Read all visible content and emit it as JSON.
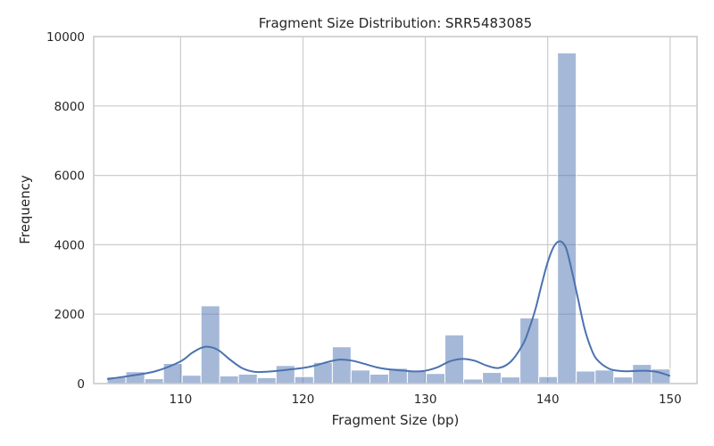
{
  "chart_data": {
    "type": "bar",
    "title": "Fragment Size Distribution: SRR5483085",
    "xlabel": "Fragment Size (bp)",
    "ylabel": "Frequency",
    "xlim": [
      102.9,
      152.2
    ],
    "ylim": [
      0,
      10000
    ],
    "xticks": [
      110,
      120,
      130,
      140,
      150
    ],
    "yticks": [
      0,
      2000,
      4000,
      6000,
      8000,
      10000
    ],
    "grid": true,
    "bin_edges": [
      104.0,
      105.53,
      107.07,
      108.6,
      110.13,
      111.67,
      113.2,
      114.73,
      116.27,
      117.8,
      119.33,
      120.87,
      122.4,
      123.93,
      125.47,
      127.0,
      128.53,
      130.07,
      131.6,
      133.13,
      134.67,
      136.2,
      137.73,
      139.27,
      140.8,
      142.33,
      143.87,
      145.4,
      146.93,
      148.47,
      150.0
    ],
    "values": [
      190,
      340,
      140,
      580,
      240,
      2240,
      220,
      270,
      170,
      520,
      200,
      610,
      1060,
      390,
      270,
      440,
      350,
      290,
      1400,
      130,
      320,
      190,
      1890,
      200,
      9530,
      360,
      390,
      190,
      550,
      420
    ],
    "kde": {
      "x": [
        104,
        106,
        108,
        110,
        111,
        112,
        113,
        114,
        115,
        116,
        117,
        118,
        120,
        121,
        122,
        123,
        124,
        125,
        126,
        127,
        128,
        129,
        130,
        131,
        132,
        133,
        134,
        135,
        136,
        137,
        138,
        138.5,
        139,
        139.5,
        140,
        140.5,
        141,
        141.5,
        142,
        142.5,
        143,
        143.5,
        144,
        145,
        146,
        147,
        148,
        149,
        150
      ],
      "y": [
        130,
        230,
        360,
        640,
        900,
        1060,
        980,
        700,
        450,
        340,
        340,
        370,
        450,
        520,
        620,
        690,
        660,
        570,
        470,
        410,
        380,
        350,
        370,
        470,
        640,
        710,
        660,
        520,
        450,
        640,
        1150,
        1600,
        2150,
        2850,
        3500,
        3950,
        4100,
        3900,
        3200,
        2400,
        1600,
        1050,
        700,
        430,
        360,
        360,
        370,
        330,
        220
      ]
    }
  }
}
